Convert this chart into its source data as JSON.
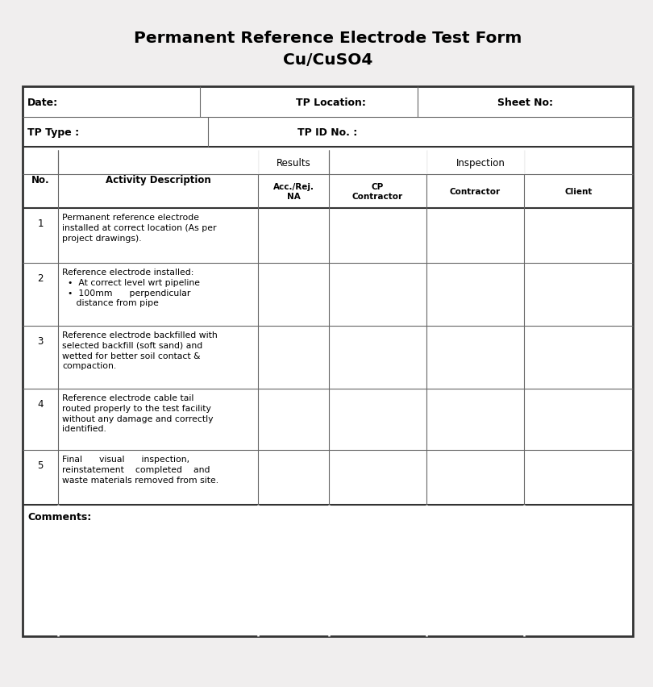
{
  "title_line1": "Permanent Reference Electrode Test Form",
  "title_line2": "Cu/CuSO4",
  "bg_color": "#f0eeee",
  "table_bg": "#ffffff",
  "border_color": "#333333",
  "thin_line_color": "#666666",
  "header_row1": [
    "Date:",
    "TP Location:",
    "Sheet No:"
  ],
  "header_row2": [
    "TP Type :",
    "TP ID No. :"
  ],
  "col_headers_top": [
    "Results",
    "Inspection"
  ],
  "col_headers_bot": [
    "Acc./Rej.\nNA",
    "CP\nContractor",
    "Contractor",
    "Client"
  ],
  "no_label": "No.",
  "activity_label": "Activity Description",
  "activities": [
    "Permanent reference electrode\ninstalled at correct location (As per\nproject drawings).",
    "Reference electrode installed:\n  •  At correct level wrt pipeline\n  •  100mm      perpendicular\n     distance from pipe",
    "Reference electrode backfilled with\nselected backfill (soft sand) and\nwetted for better soil contact &\ncompaction.",
    "Reference electrode cable tail\nrouted properly to the test facility\nwithout any damage and correctly\nidentified.",
    "Final      visual      inspection,\nreinstatement    completed    and\nwaste materials removed from site."
  ],
  "comments_label": "Comments:",
  "lw_thick": 1.5,
  "lw_thin": 0.8,
  "lw_outer": 2.0
}
